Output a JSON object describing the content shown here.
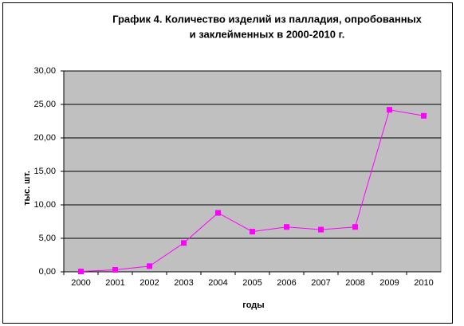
{
  "chart_data": {
    "type": "line",
    "title": [
      "График 4. Количество изделий из палладия, опробованных",
      "и заклейменных в 2000-2010 г."
    ],
    "x_label": "годы",
    "y_label": "тыс. шт.",
    "categories": [
      "2000",
      "2001",
      "2002",
      "2003",
      "2004",
      "2005",
      "2006",
      "2007",
      "2008",
      "2009",
      "2010"
    ],
    "values": [
      0.05,
      0.3,
      0.85,
      4.3,
      8.8,
      6.0,
      6.7,
      6.3,
      6.7,
      24.2,
      23.3
    ],
    "color": "#ff00ff",
    "ylim": [
      0,
      30
    ],
    "yticks": [
      {
        "value": 0,
        "label": "0,00"
      },
      {
        "value": 5,
        "label": "5,00"
      },
      {
        "value": 10,
        "label": "10,00"
      },
      {
        "value": 15,
        "label": "15,00"
      },
      {
        "value": 20,
        "label": "20,00"
      },
      {
        "value": 25,
        "label": "25,00"
      },
      {
        "value": 30,
        "label": "30,00"
      }
    ],
    "grid": true
  }
}
